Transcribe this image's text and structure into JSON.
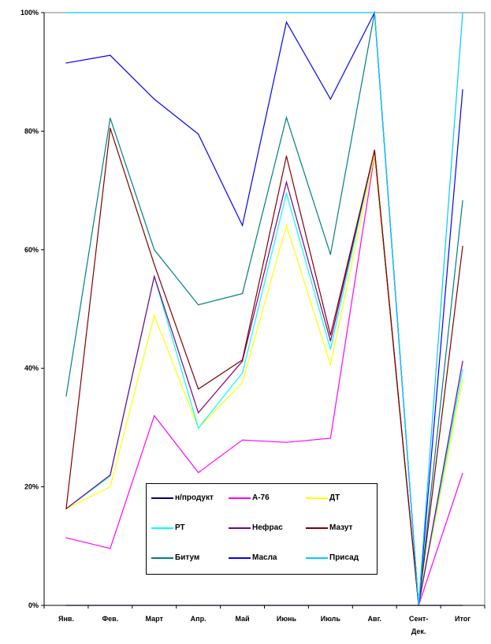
{
  "chart_data": {
    "type": "line",
    "title": "",
    "xlabel": "",
    "ylabel": "",
    "categories": [
      "Янв.",
      "Фев.",
      "Март",
      "Апр.",
      "Май",
      "Июнь",
      "Июль",
      "Авг.",
      "Сент-Дек.",
      "Итог"
    ],
    "y_ticks": [
      "0%",
      "20%",
      "40%",
      "60%",
      "80%",
      "100%"
    ],
    "ylim": [
      0,
      100
    ],
    "grid": false,
    "legend_position": "bottom-center",
    "series": [
      {
        "name": "н/продукт",
        "color": "#000080",
        "values": [
          0,
          0,
          0,
          0,
          0,
          0,
          0,
          0,
          0,
          0
        ]
      },
      {
        "name": "А-76",
        "color": "#FF00FF",
        "values": [
          11.4,
          9.6,
          32,
          22.4,
          27.9,
          27.5,
          28.2,
          76,
          0,
          22.3
        ]
      },
      {
        "name": "ДТ",
        "color": "#FFFF00",
        "values": [
          16.3,
          20,
          48.9,
          29.9,
          37.6,
          64.1,
          40.6,
          76,
          0,
          38.2
        ]
      },
      {
        "name": "РТ",
        "color": "#00FFFF",
        "values": [
          16.3,
          21.8,
          55.5,
          29.9,
          39.2,
          69.5,
          43.2,
          76.8,
          0,
          39.8
        ]
      },
      {
        "name": "Нефрас",
        "color": "#800080",
        "values": [
          16.3,
          22,
          55.5,
          32.5,
          41.2,
          71.4,
          44.6,
          76.8,
          0,
          41.2
        ]
      },
      {
        "name": "Мазут",
        "color": "#800000",
        "values": [
          16.3,
          80.5,
          57.5,
          36.5,
          41.4,
          75.8,
          45.6,
          76.8,
          0,
          60.6
        ]
      },
      {
        "name": "Битум",
        "color": "#008080",
        "values": [
          35.3,
          82.2,
          60,
          50.7,
          52.6,
          82.3,
          59.2,
          100,
          0,
          68.3
        ]
      },
      {
        "name": "Масла",
        "color": "#0000FF",
        "values": [
          91.5,
          92.8,
          85.4,
          79.5,
          64.1,
          98.4,
          85.4,
          100,
          0,
          87
        ]
      },
      {
        "name": "Присад",
        "color": "#00CCFF",
        "values": [
          100,
          100,
          100,
          100,
          100,
          100,
          100,
          100,
          0,
          100
        ]
      }
    ]
  }
}
